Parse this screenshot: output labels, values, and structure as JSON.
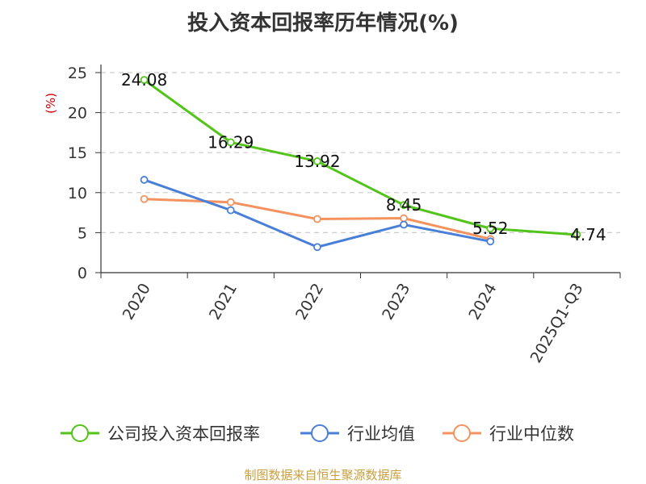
{
  "chart_data": {
    "type": "line",
    "title": "投入资本回报率历年情况(%)",
    "ylabel": "(%)",
    "categories": [
      "2020",
      "2021",
      "2022",
      "2023",
      "2024",
      "2025Q1-Q3"
    ],
    "ylim": [
      0,
      25
    ],
    "yticks": [
      0,
      5,
      10,
      15,
      20,
      25
    ],
    "grid": true,
    "legend_position": "bottom",
    "series": [
      {
        "name": "公司投入资本回报率",
        "color": "#52c41a",
        "values": [
          24.08,
          16.29,
          13.92,
          8.45,
          5.52,
          4.74
        ],
        "show_labels": true
      },
      {
        "name": "行业均值",
        "color": "#4a7fd8",
        "values": [
          11.6,
          7.8,
          3.2,
          6.0,
          3.9,
          null
        ],
        "show_labels": false
      },
      {
        "name": "行业中位数",
        "color": "#f4935f",
        "values": [
          9.2,
          8.8,
          6.7,
          6.8,
          4.2,
          null
        ],
        "show_labels": false
      }
    ]
  },
  "colors": {
    "ylabel": "#cc0000",
    "source": "#c8a040",
    "grid": "#cccccc",
    "axis": "#333333"
  },
  "source": "制图数据来自恒生聚源数据库"
}
